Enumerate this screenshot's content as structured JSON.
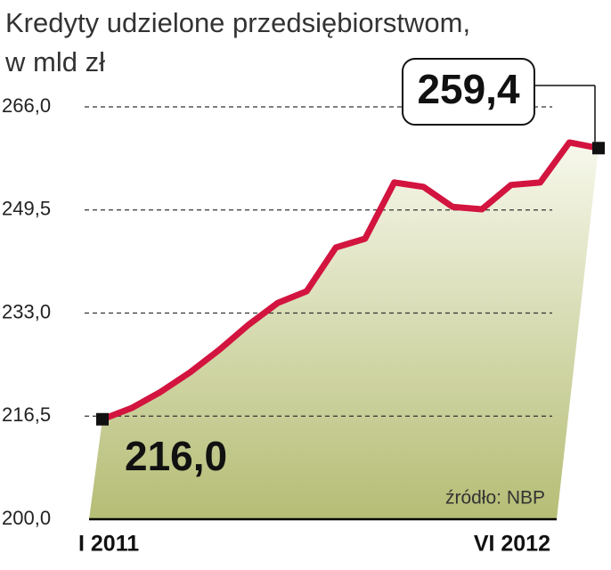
{
  "chart_data": {
    "type": "area",
    "title": "Kredyty udzielone przedsiębiorstwom,",
    "subtitle": "w mld zł",
    "categories": [
      "I 2011",
      null,
      null,
      null,
      null,
      null,
      null,
      null,
      null,
      null,
      null,
      null,
      null,
      null,
      null,
      null,
      null,
      "VI 2012"
    ],
    "values": [
      216.0,
      217.8,
      220.4,
      223.5,
      227.1,
      231.1,
      234.6,
      236.5,
      243.5,
      244.9,
      253.9,
      253.2,
      250.0,
      249.6,
      253.5,
      253.9,
      260.3,
      259.4
    ],
    "value_labels": [
      "216,0",
      null,
      null,
      null,
      null,
      null,
      null,
      null,
      null,
      null,
      null,
      null,
      null,
      null,
      null,
      null,
      null,
      "259,4"
    ],
    "color": "#d2143f",
    "ylim": [
      200,
      266
    ],
    "yticks": [
      {
        "value": 200,
        "label": "200,0"
      },
      {
        "value": 216.5,
        "label": "216,5"
      },
      {
        "value": 233,
        "label": "233,0"
      },
      {
        "value": 249.5,
        "label": "249,5"
      },
      {
        "value": 266,
        "label": "266,0"
      }
    ],
    "grid": true,
    "source": "źródło: NBP"
  }
}
